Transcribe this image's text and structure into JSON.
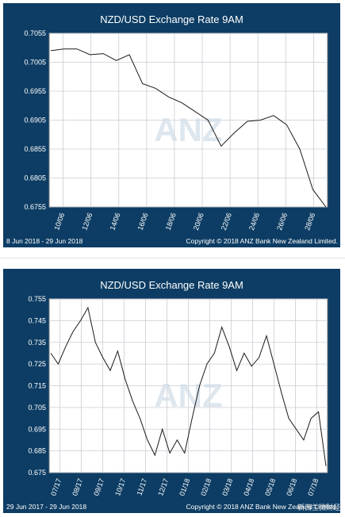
{
  "chart_data": [
    {
      "type": "line",
      "title": "NZD/USD Exchange Rate  9AM",
      "date_range": "8 Jun 2018 - 29 Jun 2018",
      "copyright": "Copyright © 2018 ANZ Bank New Zealand Limited.",
      "watermark": "ANZ",
      "grid": true,
      "ylim": [
        0.6755,
        0.7055
      ],
      "yticks": [
        "0.6755",
        "0.6805",
        "0.6855",
        "0.6905",
        "0.6955",
        "0.7005",
        "0.7055"
      ],
      "xticks": [
        "10/06",
        "12/06",
        "14/06",
        "16/06",
        "18/06",
        "20/06",
        "22/06",
        "24/06",
        "26/06",
        "28/06"
      ],
      "x": [
        "08/06",
        "09/06",
        "10/06",
        "11/06",
        "12/06",
        "13/06",
        "14/06",
        "15/06",
        "16/06",
        "17/06",
        "18/06",
        "19/06",
        "20/06",
        "21/06",
        "22/06",
        "23/06",
        "24/06",
        "25/06",
        "26/06",
        "27/06",
        "28/06",
        "29/06"
      ],
      "values": [
        0.7025,
        0.7028,
        0.7028,
        0.7018,
        0.702,
        0.7008,
        0.7018,
        0.6968,
        0.696,
        0.6945,
        0.6935,
        0.692,
        0.6905,
        0.686,
        0.6883,
        0.6903,
        0.6905,
        0.6913,
        0.6897,
        0.6855,
        0.6785,
        0.6755
      ]
    },
    {
      "type": "line",
      "title": "NZD/USD Exchange Rate  9AM",
      "date_range": "29 Jun 2017 - 29 Jun 2018",
      "copyright": "Copyright © 2018 ANZ Bank New Zealand Limited.",
      "watermark": "ANZ",
      "grid": true,
      "ylim": [
        0.675,
        0.755
      ],
      "yticks": [
        "0.675",
        "0.685",
        "0.695",
        "0.705",
        "0.715",
        "0.725",
        "0.735",
        "0.745",
        "0.755"
      ],
      "xticks": [
        "07/17",
        "08/17",
        "09/17",
        "10/17",
        "11/17",
        "12/17",
        "01/18",
        "02/18",
        "03/18",
        "04/18",
        "05/18",
        "06/18",
        "07/18"
      ],
      "x": [
        "07/17",
        "07/17",
        "07/17",
        "07/17",
        "08/17",
        "08/17",
        "08/17",
        "09/17",
        "09/17",
        "09/17",
        "10/17",
        "10/17",
        "10/17",
        "11/17",
        "11/17",
        "11/17",
        "12/17",
        "12/17",
        "12/17",
        "01/18",
        "01/18",
        "01/18",
        "02/18",
        "02/18",
        "02/18",
        "03/18",
        "03/18",
        "03/18",
        "04/18",
        "04/18",
        "04/18",
        "05/18",
        "05/18",
        "05/18",
        "06/18",
        "06/18",
        "06/18",
        "07/18"
      ],
      "values": [
        0.73,
        0.725,
        0.733,
        0.74,
        0.745,
        0.751,
        0.735,
        0.728,
        0.722,
        0.731,
        0.718,
        0.708,
        0.7,
        0.69,
        0.683,
        0.695,
        0.684,
        0.69,
        0.684,
        0.7,
        0.715,
        0.725,
        0.73,
        0.742,
        0.733,
        0.722,
        0.73,
        0.724,
        0.728,
        0.738,
        0.725,
        0.712,
        0.7,
        0.695,
        0.69,
        0.7,
        0.703,
        0.678
      ]
    }
  ],
  "overlay": {
    "wechat_label": "新西兰微财经"
  }
}
